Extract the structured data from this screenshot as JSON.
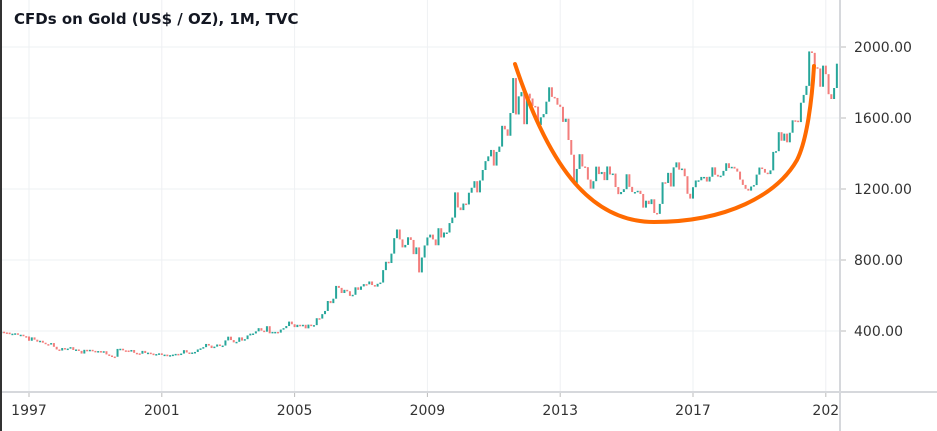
{
  "chart_data": {
    "type": "candlestick",
    "title": "CFDs on Gold (US$ / OZ), 1M, TVC",
    "interval": "monthly",
    "start": "1996-03",
    "end": "2021-05",
    "x_tick_labels": [
      "1997",
      "2001",
      "2005",
      "2009",
      "2013",
      "2017",
      "202"
    ],
    "y_tick_labels": [
      "400.00",
      "800.00",
      "1200.00",
      "1600.00",
      "2000.00"
    ],
    "y_ticks": [
      400,
      800,
      1200,
      1600,
      2000
    ],
    "ylim": [
      130,
      2250
    ],
    "y_axis_side": "right",
    "grid": true,
    "colors": {
      "up": "#26a69a",
      "down": "#ef5350",
      "annotation": "#ff6a00"
    },
    "annotation": "cup-shaped curve from the 2011 peak to the 2020 peak",
    "closes": [
      396,
      392,
      391,
      382,
      385,
      387,
      379,
      379,
      371,
      369,
      345,
      364,
      351,
      340,
      345,
      334,
      326,
      325,
      332,
      311,
      296,
      290,
      304,
      298,
      301,
      309,
      293,
      296,
      288,
      273,
      294,
      292,
      294,
      288,
      287,
      287,
      279,
      286,
      268,
      262,
      256,
      255,
      299,
      300,
      291,
      290,
      284,
      293,
      277,
      274,
      272,
      288,
      276,
      278,
      273,
      264,
      270,
      274,
      265,
      267,
      258,
      264,
      267,
      271,
      265,
      273,
      292,
      279,
      275,
      279,
      282,
      296,
      302,
      309,
      327,
      318,
      304,
      312,
      324,
      318,
      318,
      347,
      368,
      349,
      336,
      339,
      364,
      346,
      354,
      375,
      385,
      386,
      398,
      416,
      402,
      396,
      427,
      387,
      395,
      395,
      391,
      408,
      416,
      428,
      453,
      438,
      422,
      435,
      428,
      435,
      415,
      436,
      429,
      433,
      472,
      470,
      495,
      513,
      569,
      557,
      582,
      654,
      643,
      614,
      632,
      624,
      598,
      604,
      646,
      632,
      651,
      664,
      663,
      679,
      659,
      650,
      666,
      673,
      743,
      790,
      783,
      836,
      923,
      972,
      916,
      871,
      885,
      928,
      913,
      833,
      871,
      730,
      814,
      882,
      927,
      943,
      916,
      883,
      979,
      927,
      955,
      955,
      1008,
      1039,
      1181,
      1096,
      1081,
      1118,
      1113,
      1179,
      1207,
      1244,
      1181,
      1248,
      1307,
      1357,
      1384,
      1420,
      1332,
      1409,
      1439,
      1556,
      1536,
      1500,
      1628,
      1825,
      1620,
      1722,
      1746,
      1565,
      1737,
      1710,
      1668,
      1664,
      1561,
      1604,
      1622,
      1692,
      1773,
      1719,
      1713,
      1675,
      1663,
      1578,
      1596,
      1476,
      1393,
      1234,
      1313,
      1396,
      1327,
      1323,
      1253,
      1202,
      1244,
      1326,
      1284,
      1296,
      1250,
      1327,
      1282,
      1287,
      1211,
      1171,
      1183,
      1199,
      1283,
      1212,
      1183,
      1183,
      1190,
      1172,
      1095,
      1134,
      1115,
      1142,
      1065,
      1060,
      1116,
      1238,
      1234,
      1291,
      1214,
      1322,
      1350,
      1309,
      1315,
      1272,
      1173,
      1146,
      1210,
      1248,
      1249,
      1268,
      1268,
      1242,
      1269,
      1322,
      1280,
      1270,
      1275,
      1302,
      1345,
      1318,
      1325,
      1315,
      1298,
      1253,
      1223,
      1201,
      1191,
      1214,
      1222,
      1281,
      1321,
      1313,
      1292,
      1284,
      1305,
      1409,
      1413,
      1520,
      1472,
      1512,
      1463,
      1517,
      1587,
      1585,
      1577,
      1686,
      1730,
      1781,
      1975,
      1967,
      1886,
      1879,
      1776,
      1895,
      1847,
      1734,
      1707,
      1769,
      1906
    ]
  }
}
